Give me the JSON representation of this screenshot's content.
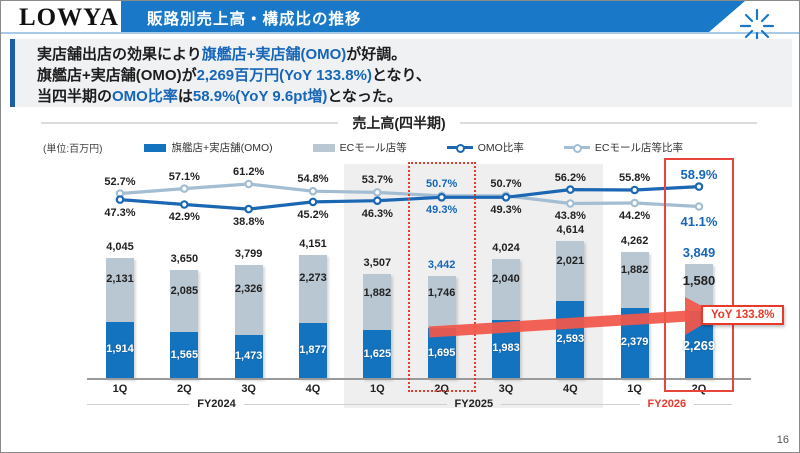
{
  "logo": "LOWYA",
  "header": {
    "title": "販路別売上高・構成比の推移"
  },
  "summary": {
    "lines": [
      [
        {
          "t": "実店舗出店の効果により"
        },
        {
          "t": "旗艦店+実店舗(OMO)",
          "hl": true
        },
        {
          "t": "が好調。"
        }
      ],
      [
        {
          "t": "旗艦店+実店舗(OMO)が"
        },
        {
          "t": "2,269百万円(YoY 133.8%)",
          "hl": true
        },
        {
          "t": "となり、"
        }
      ],
      [
        {
          "t": "当四半期の"
        },
        {
          "t": "OMO比率",
          "hl": true
        },
        {
          "t": "は"
        },
        {
          "t": "58.9%(YoY 9.6pt増)",
          "hl": true
        },
        {
          "t": "となった。"
        }
      ]
    ]
  },
  "chart_data": {
    "type": "bar+line",
    "title": "売上高(四半期)",
    "unit_label": "(単位:百万円)",
    "categories": [
      "1Q",
      "2Q",
      "3Q",
      "4Q",
      "1Q",
      "2Q",
      "3Q",
      "4Q",
      "1Q",
      "2Q"
    ],
    "fiscal_years": [
      {
        "label": "FY2024",
        "start": 0,
        "end": 3,
        "red": false
      },
      {
        "label": "FY2025",
        "start": 4,
        "end": 7,
        "red": false
      },
      {
        "label": "FY2026",
        "start": 8,
        "end": 9,
        "red": true
      }
    ],
    "bar_series": [
      {
        "name": "旗艦店+実店舗(OMO)",
        "color": "#1473be",
        "values": [
          1914,
          1565,
          1473,
          1877,
          1625,
          1695,
          1983,
          2593,
          2379,
          2269
        ]
      },
      {
        "name": "ECモール店等",
        "color": "#b9c7d3",
        "values": [
          2131,
          2085,
          2326,
          2273,
          1882,
          1746,
          2040,
          2021,
          1882,
          1580
        ]
      }
    ],
    "totals": [
      4045,
      3650,
      3799,
      4151,
      3507,
      3442,
      4024,
      4614,
      4262,
      3849
    ],
    "line_series": [
      {
        "name": "OMO比率",
        "color": "#1b67b3",
        "values": [
          47.3,
          42.9,
          38.8,
          45.2,
          46.3,
          49.3,
          49.3,
          56.2,
          55.8,
          58.9
        ]
      },
      {
        "name": "ECモール店等比率",
        "color": "#a3bdd2",
        "values": [
          52.7,
          57.1,
          61.2,
          54.8,
          53.7,
          50.7,
          50.7,
          43.8,
          44.2,
          41.1
        ]
      }
    ],
    "highlight": {
      "dashed_box_index": 5,
      "solid_box_index": 9,
      "blue_label_indices": [
        5,
        9
      ],
      "big_label_index": 9,
      "annotation": "YoY 133.8%"
    },
    "legend_position": "top",
    "grid": false
  },
  "colors": {
    "accent_blue": "#1979c8",
    "text_blue": "#1766b8",
    "highlight_red": "#e8392b",
    "arrow_red": "#f2574a"
  },
  "page_number": "16"
}
